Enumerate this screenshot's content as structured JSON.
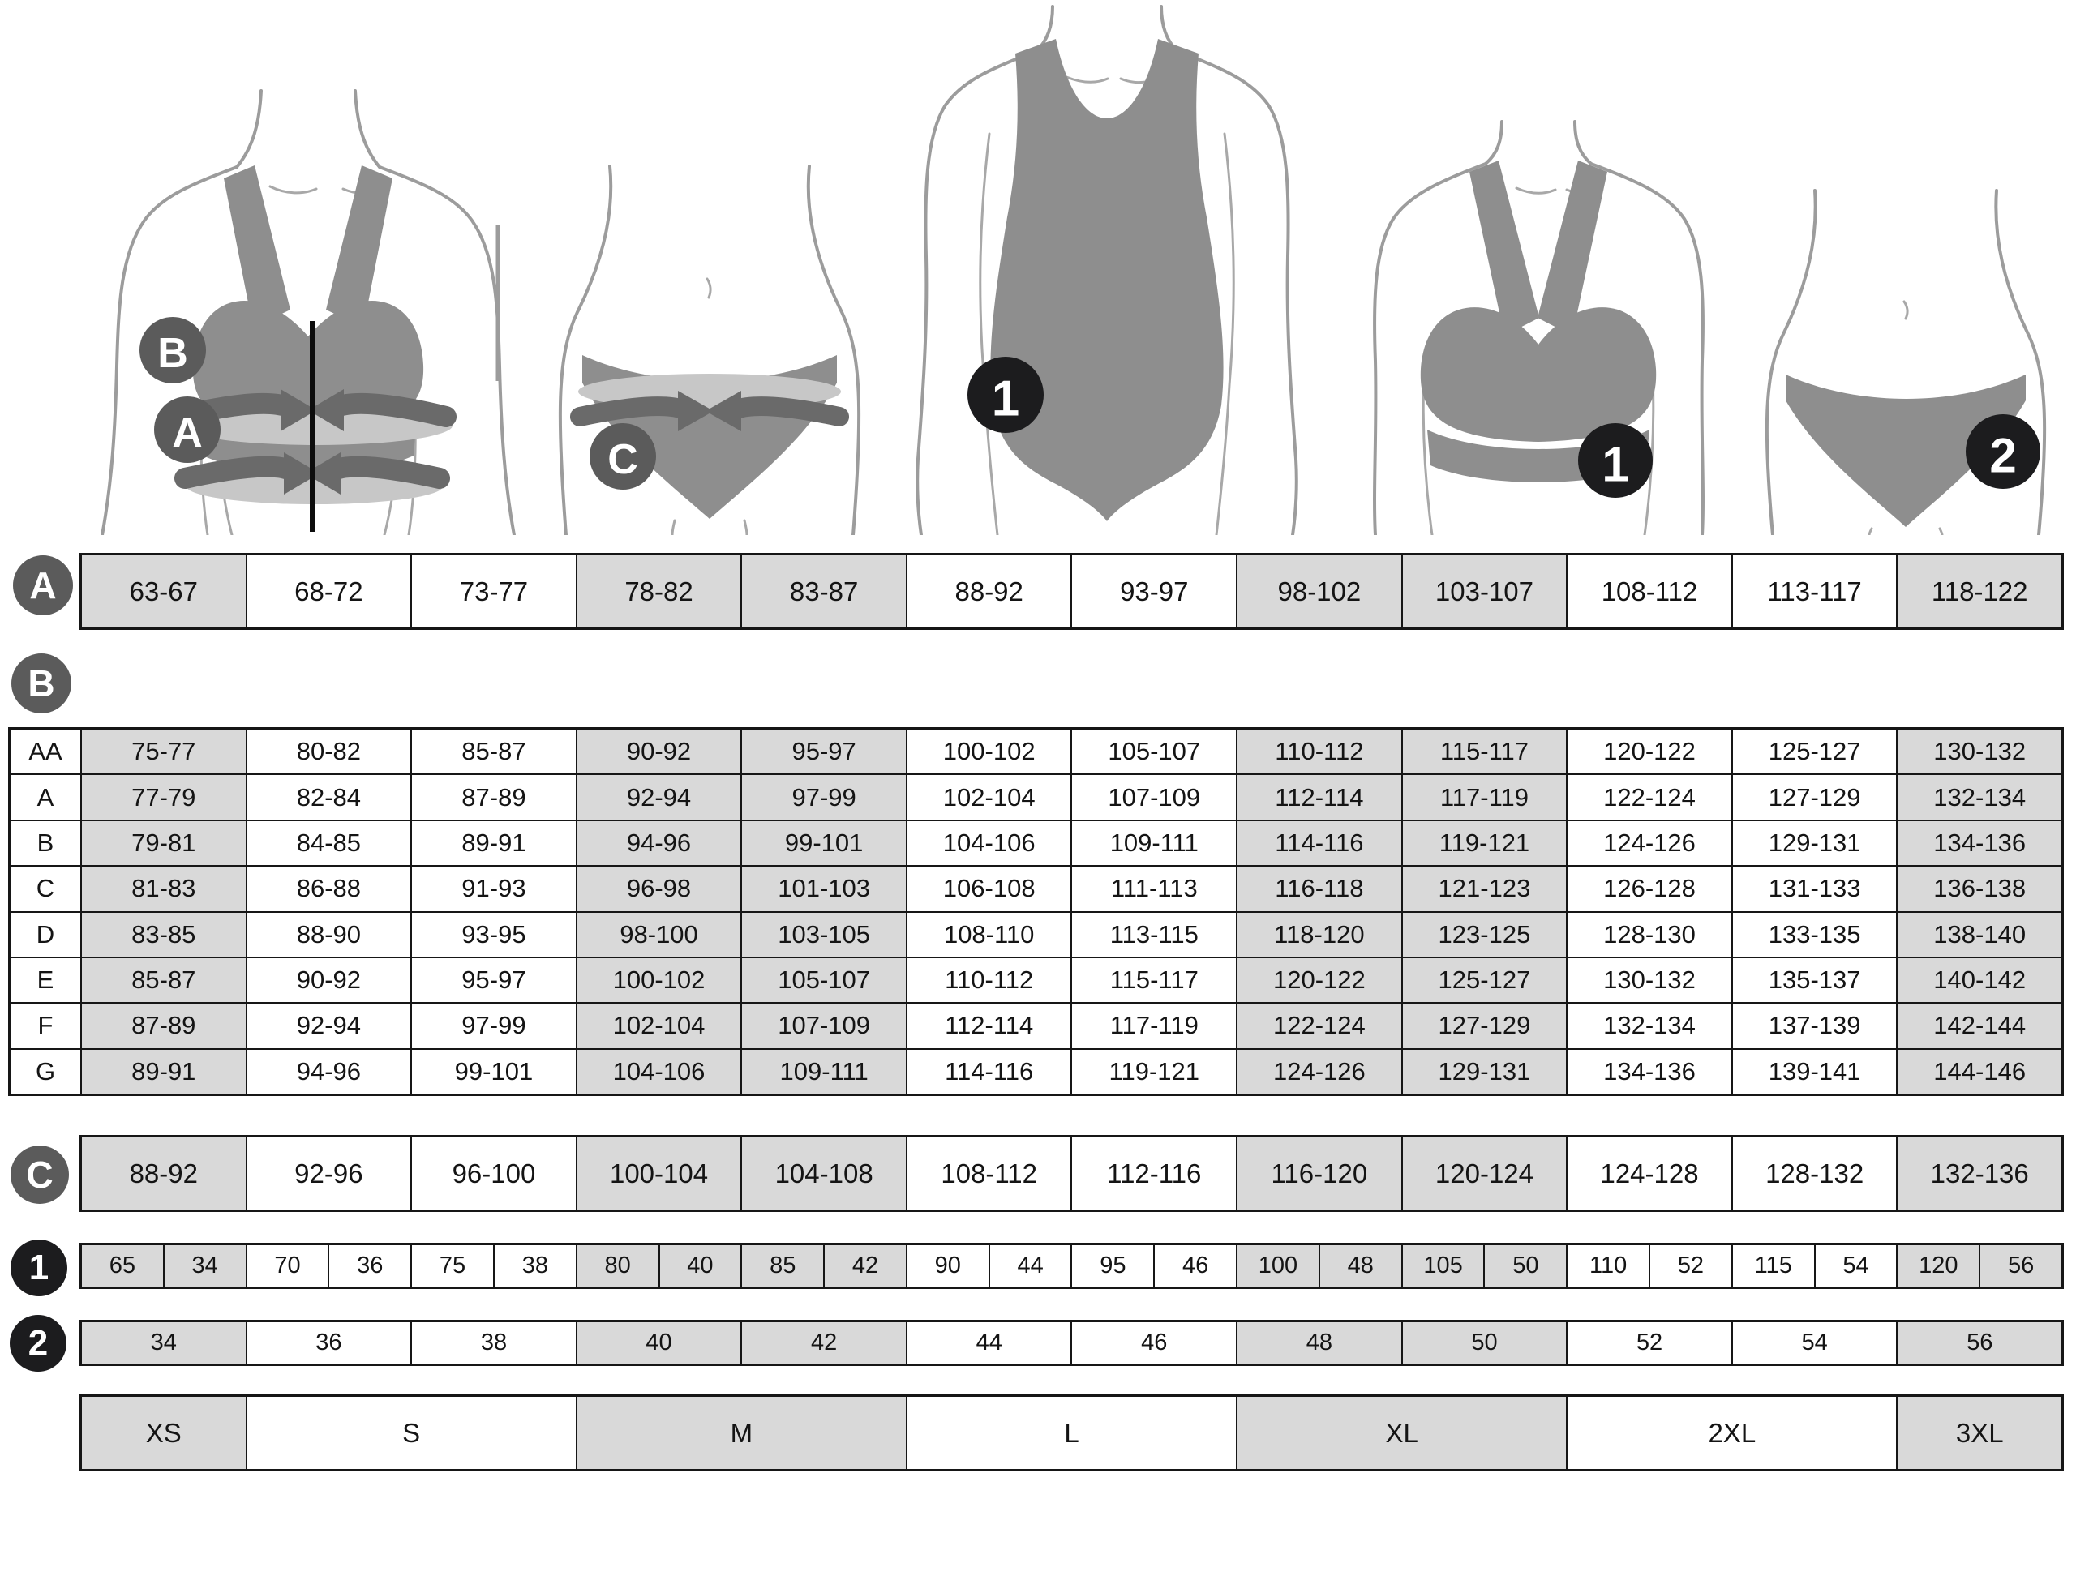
{
  "colors": {
    "cell_shaded": "#d9d9d9",
    "cell_white": "#ffffff",
    "grid_line": "#161616",
    "garment_gray": "#8e8e8e",
    "band_light": "#c7c7c7",
    "band_dark": "#6a6a6a",
    "body_outline": "#9c9c9c",
    "letter_badge_bg": "#5b5b5b",
    "number_badge_bg": "#1c1c1e",
    "badge_text": "#ffffff",
    "center_line": "#0d0d0d"
  },
  "badges": {
    "a": "A",
    "b": "B",
    "c": "C",
    "n1": "1",
    "n2": "2"
  },
  "shaded_columns": [
    1,
    4,
    5,
    8,
    9,
    12
  ],
  "row_a": {
    "badge": "A",
    "cells": [
      "63-67",
      "68-72",
      "73-77",
      "78-82",
      "83-87",
      "88-92",
      "93-97",
      "98-102",
      "103-107",
      "108-112",
      "113-117",
      "118-122"
    ]
  },
  "table_b": {
    "badge": "B",
    "rows": [
      {
        "label": "AA",
        "cells": [
          "75-77",
          "80-82",
          "85-87",
          "90-92",
          "95-97",
          "100-102",
          "105-107",
          "110-112",
          "115-117",
          "120-122",
          "125-127",
          "130-132"
        ]
      },
      {
        "label": "A",
        "cells": [
          "77-79",
          "82-84",
          "87-89",
          "92-94",
          "97-99",
          "102-104",
          "107-109",
          "112-114",
          "117-119",
          "122-124",
          "127-129",
          "132-134"
        ]
      },
      {
        "label": "B",
        "cells": [
          "79-81",
          "84-85",
          "89-91",
          "94-96",
          "99-101",
          "104-106",
          "109-111",
          "114-116",
          "119-121",
          "124-126",
          "129-131",
          "134-136"
        ]
      },
      {
        "label": "C",
        "cells": [
          "81-83",
          "86-88",
          "91-93",
          "96-98",
          "101-103",
          "106-108",
          "111-113",
          "116-118",
          "121-123",
          "126-128",
          "131-133",
          "136-138"
        ]
      },
      {
        "label": "D",
        "cells": [
          "83-85",
          "88-90",
          "93-95",
          "98-100",
          "103-105",
          "108-110",
          "113-115",
          "118-120",
          "123-125",
          "128-130",
          "133-135",
          "138-140"
        ]
      },
      {
        "label": "E",
        "cells": [
          "85-87",
          "90-92",
          "95-97",
          "100-102",
          "105-107",
          "110-112",
          "115-117",
          "120-122",
          "125-127",
          "130-132",
          "135-137",
          "140-142"
        ]
      },
      {
        "label": "F",
        "cells": [
          "87-89",
          "92-94",
          "97-99",
          "102-104",
          "107-109",
          "112-114",
          "117-119",
          "122-124",
          "127-129",
          "132-134",
          "137-139",
          "142-144"
        ]
      },
      {
        "label": "G",
        "cells": [
          "89-91",
          "94-96",
          "99-101",
          "104-106",
          "109-111",
          "114-116",
          "119-121",
          "124-126",
          "129-131",
          "134-136",
          "139-141",
          "144-146"
        ]
      }
    ]
  },
  "row_c": {
    "badge": "C",
    "cells": [
      "88-92",
      "92-96",
      "96-100",
      "100-104",
      "104-108",
      "108-112",
      "112-116",
      "116-120",
      "120-124",
      "124-128",
      "128-132",
      "132-136"
    ]
  },
  "row_1": {
    "badge": "1",
    "pairs": [
      [
        "65",
        "34"
      ],
      [
        "70",
        "36"
      ],
      [
        "75",
        "38"
      ],
      [
        "80",
        "40"
      ],
      [
        "85",
        "42"
      ],
      [
        "90",
        "44"
      ],
      [
        "95",
        "46"
      ],
      [
        "100",
        "48"
      ],
      [
        "105",
        "50"
      ],
      [
        "110",
        "52"
      ],
      [
        "115",
        "54"
      ],
      [
        "120",
        "56"
      ]
    ]
  },
  "row_2": {
    "badge": "2",
    "cells": [
      "34",
      "36",
      "38",
      "40",
      "42",
      "44",
      "46",
      "48",
      "50",
      "52",
      "54",
      "56"
    ]
  },
  "sizes": {
    "cells": [
      {
        "label": "XS",
        "span": 1
      },
      {
        "label": "S",
        "span": 2
      },
      {
        "label": "M",
        "span": 2
      },
      {
        "label": "L",
        "span": 2
      },
      {
        "label": "XL",
        "span": 2
      },
      {
        "label": "2XL",
        "span": 2
      },
      {
        "label": "3XL",
        "span": 1
      }
    ]
  }
}
